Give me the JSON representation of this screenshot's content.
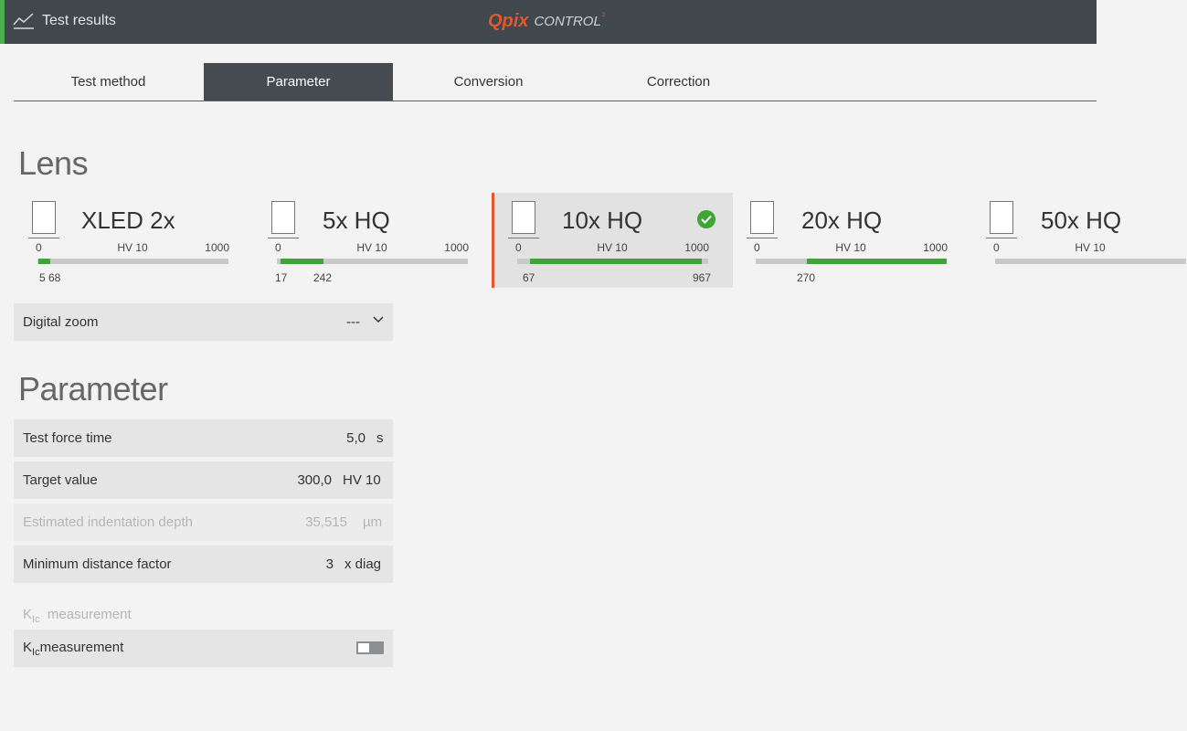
{
  "header": {
    "title": "Test results",
    "brand": "Qpix",
    "brand_suffix": "CONTROL",
    "brand_sup": "2"
  },
  "tabs": [
    {
      "label": "Test method",
      "active": false
    },
    {
      "label": "Parameter",
      "active": true
    },
    {
      "label": "Conversion",
      "active": false
    },
    {
      "label": "Correction",
      "active": false
    }
  ],
  "lens": {
    "title": "Lens",
    "items": [
      {
        "name": "XLED 2x",
        "min": "0",
        "max": "1000",
        "unit": "HV 10",
        "range_low": "5",
        "range_high": "68",
        "range_frac": [
          0.005,
          0.068
        ],
        "selected": false
      },
      {
        "name": "5x HQ",
        "min": "0",
        "max": "1000",
        "unit": "HV 10",
        "range_low": "17",
        "range_high": "242",
        "range_frac": [
          0.017,
          0.242
        ],
        "selected": false
      },
      {
        "name": "10x HQ",
        "min": "0",
        "max": "1000",
        "unit": "HV 10",
        "range_low": "67",
        "range_high": "967",
        "range_frac": [
          0.067,
          0.967
        ],
        "selected": true
      },
      {
        "name": "20x HQ",
        "min": "0",
        "max": "1000",
        "unit": "HV 10",
        "range_low": "270",
        "range_high": "",
        "range_frac": [
          0.27,
          1.0
        ],
        "selected": false
      },
      {
        "name": "50x HQ",
        "min": "0",
        "max": "",
        "unit": "HV 10",
        "range_low": "",
        "range_high": "",
        "range_frac": [
          0,
          0
        ],
        "selected": false
      }
    ],
    "digital_zoom": {
      "label": "Digital zoom",
      "value": "---"
    }
  },
  "parameter": {
    "title": "Parameter",
    "test_force_time": {
      "label": "Test force time",
      "value": "5,0",
      "unit": "s"
    },
    "target_value": {
      "label": "Target value",
      "value": "300,0",
      "unit": "HV 10"
    },
    "indentation_depth": {
      "label": "Estimated indentation depth",
      "value": "35,515",
      "unit": "µm"
    },
    "min_distance": {
      "label": "Minimum distance factor",
      "value": "3",
      "unit": "x diag"
    },
    "kic_head": {
      "k": "K",
      "sub": "Ic",
      "text": "measurement"
    },
    "kic_row": {
      "k": "K",
      "sub": "Ic",
      "text": "measurement",
      "enabled": false
    }
  },
  "colors": {
    "accent": "#e2572f",
    "ok": "#3fa535",
    "header": "#40474d"
  }
}
